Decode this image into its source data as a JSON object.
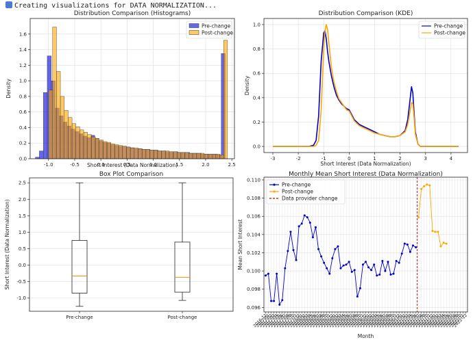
{
  "header": {
    "text": "Creating visualizations for DATA NORMALIZATION..."
  },
  "chart_data": [
    {
      "type": "bar",
      "subtype": "histogram",
      "title": "Distribution Comparison (Histograms)",
      "xlabel": "Short Interest (Data Normalization)",
      "ylabel": "Density",
      "xlim": [
        -1.35,
        2.55
      ],
      "ylim": [
        0,
        1.8
      ],
      "xticks": [
        "-1.0",
        "-0.5",
        "0.0",
        "0.5",
        "1.0",
        "1.5",
        "2.0",
        "2.5"
      ],
      "yticks": [
        "0.0",
        "0.2",
        "0.4",
        "0.6",
        "0.8",
        "1.0",
        "1.2",
        "1.4",
        "1.6"
      ],
      "legend_position": "top-right",
      "series": [
        {
          "name": "Pre-change",
          "color": "#0000dd",
          "bin_start": -1.25,
          "bin_width": 0.0755,
          "values": [
            0.02,
            0.1,
            0.85,
            1.32,
            1.0,
            0.65,
            0.55,
            0.47,
            0.42,
            0.38,
            0.35,
            0.32,
            0.29,
            0.27,
            0.3,
            0.26,
            0.23,
            0.21,
            0.2,
            0.18,
            0.17,
            0.16,
            0.16,
            0.15,
            0.14,
            0.13,
            0.13,
            0.12,
            0.12,
            0.11,
            0.11,
            0.1,
            0.1,
            0.09,
            0.09,
            0.09,
            0.08,
            0.08,
            0.08,
            0.07,
            0.07,
            0.07,
            0.06,
            0.06,
            0.06,
            0.06,
            0.05,
            1.35
          ]
        },
        {
          "name": "Post-change",
          "color": "#ffa500",
          "bin_start": -1.07,
          "bin_width": 0.0742,
          "values": [
            0.0,
            0.88,
            1.69,
            1.12,
            0.8,
            0.62,
            0.53,
            0.45,
            0.41,
            0.37,
            0.34,
            0.31,
            0.28,
            0.26,
            0.24,
            0.22,
            0.21,
            0.19,
            0.18,
            0.17,
            0.16,
            0.15,
            0.14,
            0.14,
            0.13,
            0.12,
            0.12,
            0.11,
            0.11,
            0.1,
            0.1,
            0.1,
            0.09,
            0.09,
            0.08,
            0.08,
            0.08,
            0.07,
            0.07,
            0.07,
            0.07,
            0.06,
            0.06,
            0.06,
            0.06,
            0.05,
            1.52
          ]
        }
      ]
    },
    {
      "type": "line",
      "subtype": "kde",
      "title": "Distribution Comparison (KDE)",
      "xlabel": "Short Interest (Data Normalization)",
      "ylabel": "Density",
      "xlim": [
        -3.35,
        4.65
      ],
      "ylim": [
        -0.05,
        1.05
      ],
      "xticks": [
        "-3",
        "-2",
        "-1",
        "0",
        "1",
        "2",
        "3",
        "4"
      ],
      "yticks": [
        "0.0",
        "0.2",
        "0.4",
        "0.6",
        "0.8",
        "1.0"
      ],
      "legend_position": "top-right",
      "x": [
        -3.0,
        -2.0,
        -1.6,
        -1.4,
        -1.3,
        -1.2,
        -1.1,
        -1.0,
        -0.95,
        -0.9,
        -0.85,
        -0.8,
        -0.7,
        -0.6,
        -0.5,
        -0.4,
        -0.3,
        -0.2,
        -0.1,
        0.0,
        0.1,
        0.2,
        0.4,
        0.6,
        0.8,
        1.0,
        1.2,
        1.4,
        1.6,
        1.8,
        2.0,
        2.2,
        2.3,
        2.4,
        2.45,
        2.5,
        2.55,
        2.6,
        2.7,
        2.8,
        3.0,
        3.5,
        4.3
      ],
      "series": [
        {
          "name": "Pre-change",
          "color": "#0000cc",
          "values": [
            0,
            0,
            0,
            0.01,
            0.05,
            0.25,
            0.7,
            0.93,
            0.95,
            0.88,
            0.78,
            0.7,
            0.58,
            0.49,
            0.42,
            0.38,
            0.35,
            0.33,
            0.31,
            0.3,
            0.26,
            0.22,
            0.18,
            0.16,
            0.14,
            0.12,
            0.1,
            0.09,
            0.08,
            0.08,
            0.09,
            0.13,
            0.22,
            0.4,
            0.49,
            0.44,
            0.28,
            0.12,
            0.02,
            0,
            0,
            0,
            0
          ]
        },
        {
          "name": "Post-change",
          "color": "#ffa500",
          "values": [
            0,
            0,
            0,
            0,
            0.01,
            0.05,
            0.3,
            0.8,
            0.95,
            1.0,
            0.96,
            0.85,
            0.65,
            0.53,
            0.45,
            0.39,
            0.36,
            0.33,
            0.3,
            0.29,
            0.25,
            0.21,
            0.17,
            0.15,
            0.13,
            0.11,
            0.1,
            0.09,
            0.08,
            0.08,
            0.09,
            0.12,
            0.18,
            0.3,
            0.36,
            0.35,
            0.24,
            0.1,
            0.02,
            0,
            0,
            0,
            0
          ]
        }
      ]
    },
    {
      "type": "box",
      "title": "Box Plot Comparison",
      "ylabel": "Short Interest (Data Normalization)",
      "ylim": [
        -1.4,
        2.65
      ],
      "yticks": [
        "-1.0",
        "-0.5",
        "0.0",
        "0.5",
        "1.0",
        "1.5",
        "2.0",
        "2.5"
      ],
      "categories": [
        "Pre-change",
        "Post-change"
      ],
      "boxes": [
        {
          "whisker_low": -1.25,
          "q1": -0.85,
          "median": -0.33,
          "q3": 0.75,
          "whisker_high": 2.5
        },
        {
          "whisker_low": -1.07,
          "q1": -0.82,
          "median": -0.37,
          "q3": 0.7,
          "whisker_high": 2.5
        }
      ]
    },
    {
      "type": "line",
      "title": "Monthly Mean Short Interest (Data Normalization)",
      "xlabel": "Month",
      "ylabel": "Mean Short Interest",
      "ylim": [
        0.0955,
        0.1103
      ],
      "yticks": [
        "0.096",
        "0.098",
        "0.100",
        "0.102",
        "0.104",
        "0.106",
        "0.108",
        "0.110"
      ],
      "xtick_labels": [
        "2016-12",
        "2017-01",
        "2017-02",
        "2017-03",
        "2017-04",
        "2017-05",
        "2017-06",
        "2017-07",
        "2017-08",
        "2017-09",
        "2017-10",
        "2017-11",
        "2017-12",
        "2018-01",
        "2018-02",
        "2018-03",
        "2018-04",
        "2018-05",
        "2018-06",
        "2018-07",
        "2018-08",
        "2018-09",
        "2018-10",
        "2018-11",
        "2018-12",
        "2019-01",
        "2019-02",
        "2019-03",
        "2019-04",
        "2019-05",
        "2019-06",
        "2019-07",
        "2019-08",
        "2019-09",
        "2019-10",
        "2019-11",
        "2019-12",
        "2020-01",
        "2020-02",
        "2020-03",
        "2020-04",
        "2020-05",
        "2020-06",
        "2020-07",
        "2020-08",
        "2020-09",
        "2020-10",
        "2020-11",
        "2020-12",
        "2021-01",
        "2021-02",
        "2021-03",
        "2021-04",
        "2021-05",
        "2021-06",
        "2021-07",
        "2021-08",
        "2021-09",
        "2021-10",
        "2021-11",
        "2021-12",
        "2022-01",
        "2022-02",
        "2022-03",
        "2022-04",
        "2022-05",
        "2022-06",
        "2022-07",
        "2022-08",
        "2022-09",
        "2022-10",
        "2022-11",
        "2022-12"
      ],
      "legend_position": "top-left",
      "series": [
        {
          "name": "Pre-change",
          "color": "#0000cc",
          "start_index": 0,
          "values": [
            0.0995,
            0.0997,
            0.0967,
            0.0967,
            0.0997,
            0.0963,
            0.0968,
            0.1003,
            0.1022,
            0.1043,
            0.1023,
            0.1012,
            0.1049,
            0.1052,
            0.1061,
            0.1059,
            0.1053,
            0.1037,
            0.1048,
            0.1024,
            0.1016,
            0.1009,
            0.1003,
            0.0997,
            0.1014,
            0.1024,
            0.1027,
            0.1003,
            0.1006,
            0.1007,
            0.101,
            0.0999,
            0.1001,
            0.0972,
            0.0981,
            0.1007,
            0.101,
            0.1004,
            0.1001,
            0.1007,
            0.0995,
            0.0996,
            0.1011,
            0.1,
            0.101,
            0.0996,
            0.0997,
            0.1011,
            0.1009,
            0.1019,
            0.103,
            0.1029,
            0.1021,
            0.1028,
            0.1026
          ]
        },
        {
          "name": "Post-change",
          "color": "#ffa500",
          "start_index": 55,
          "values": [
            0.1059,
            0.109,
            0.1093,
            0.1095,
            0.1094,
            0.1044,
            0.1043,
            0.1043,
            0.1027,
            0.1031,
            0.103
          ]
        }
      ],
      "reference_line": {
        "name": "Data provider change",
        "color": "#cc0000",
        "index": 54.5
      }
    }
  ]
}
